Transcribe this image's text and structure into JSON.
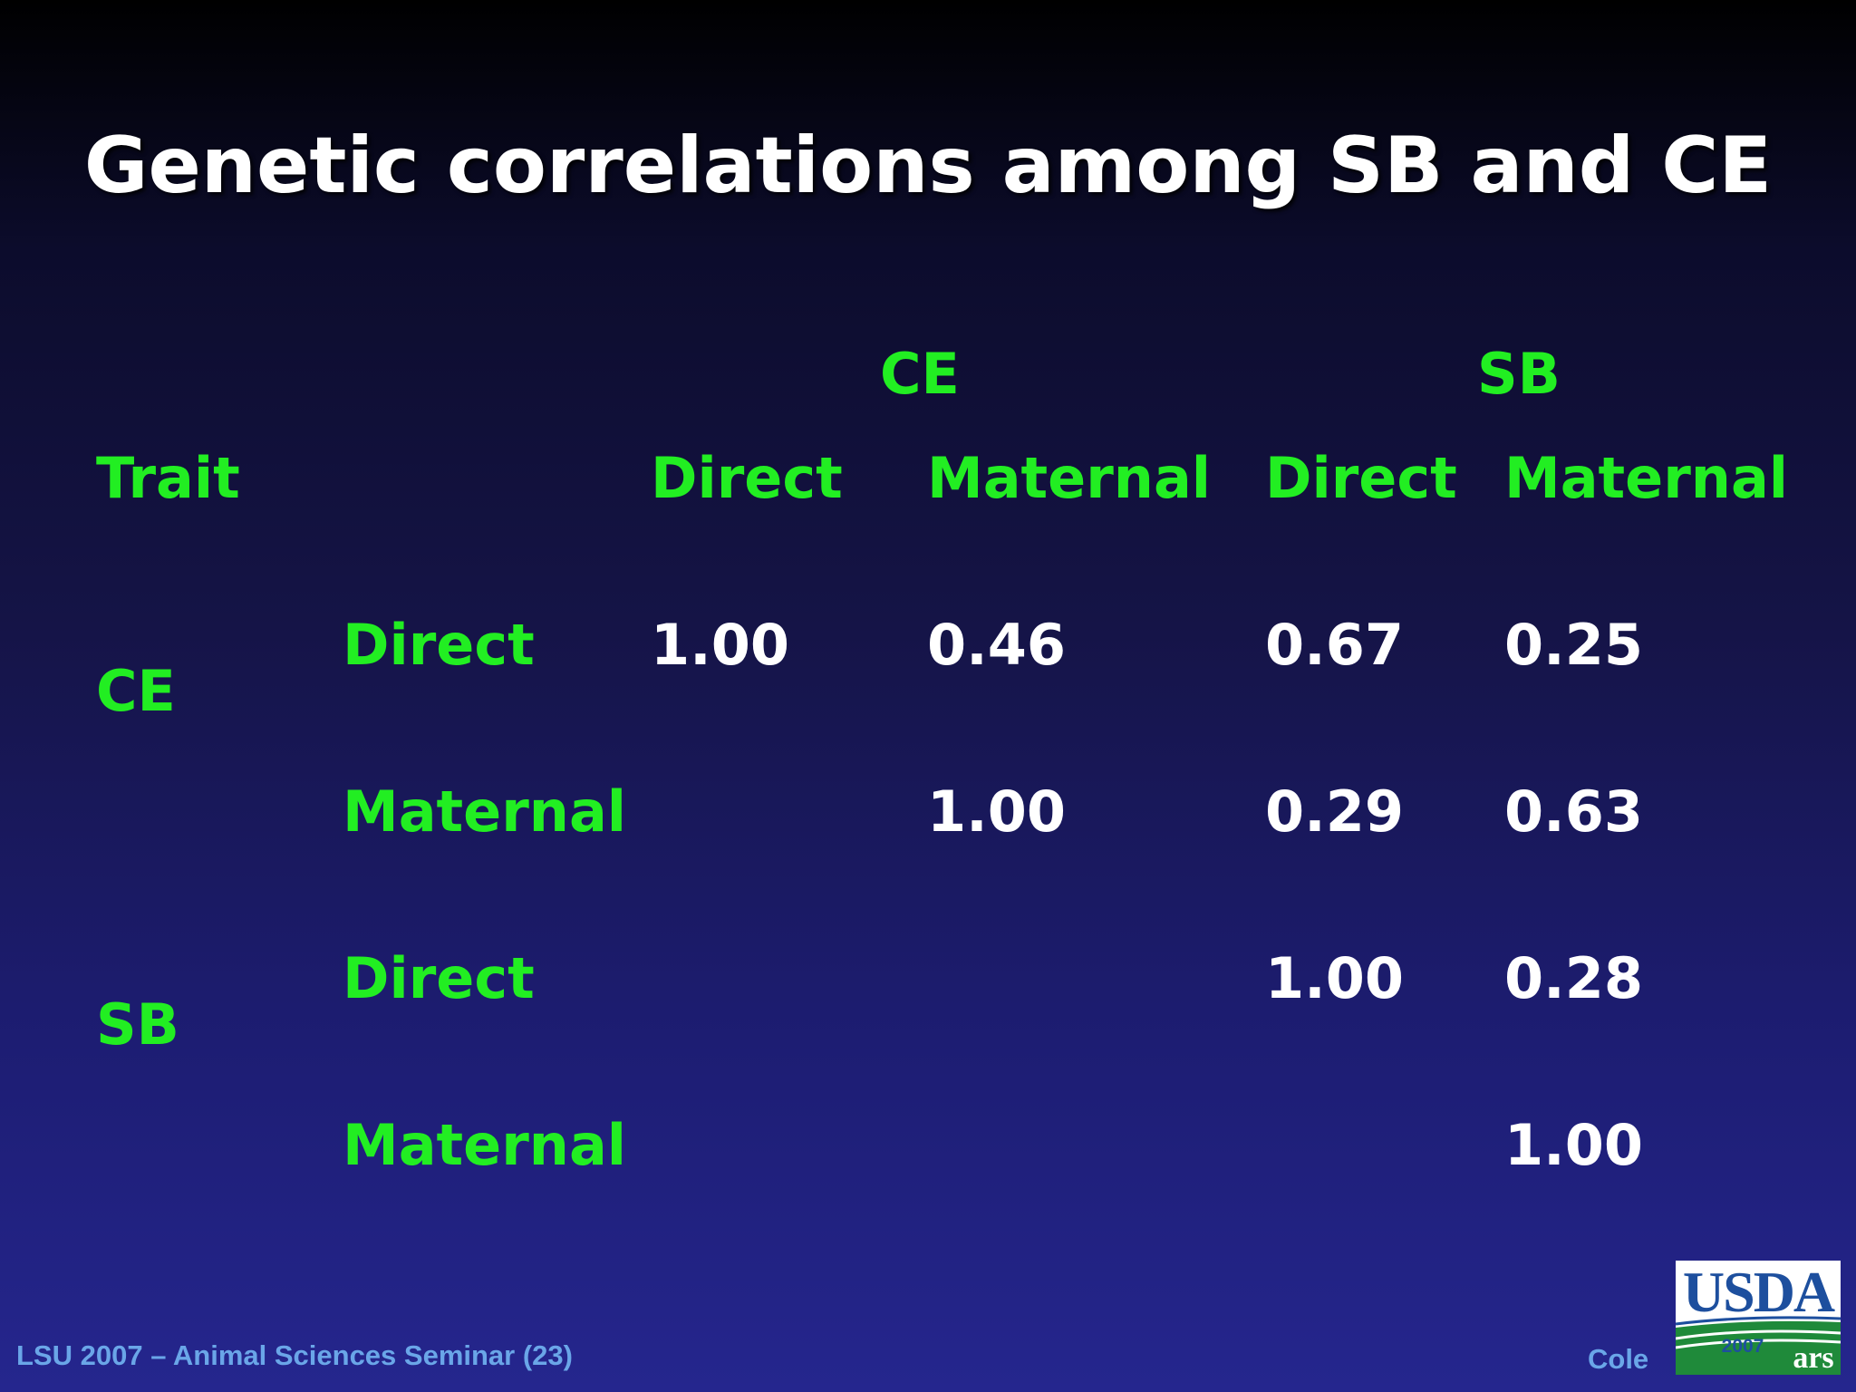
{
  "title": "Genetic correlations among SB and CE",
  "table": {
    "group_headers": [
      "CE",
      "SB"
    ],
    "column_headers": [
      "Direct",
      "Maternal",
      "Direct",
      "Maternal"
    ],
    "trait_header": "Trait",
    "trait_groups": [
      "CE",
      "SB"
    ],
    "rows": [
      {
        "effect": "Direct",
        "values": [
          "1.00",
          "0.46",
          "0.67",
          "0.25"
        ]
      },
      {
        "effect": "Maternal",
        "values": [
          "",
          "1.00",
          "0.29",
          "0.63"
        ]
      },
      {
        "effect": "Direct",
        "values": [
          "",
          "",
          "1.00",
          "0.28"
        ]
      },
      {
        "effect": "Maternal",
        "values": [
          "",
          "",
          "",
          "1.00"
        ]
      }
    ]
  },
  "footer": {
    "left": "LSU 2007 – Animal Sciences Seminar (23)",
    "author": "Cole"
  },
  "logo": {
    "text": "USDA",
    "badge_year": "2007",
    "icon": "usda-ars-logo"
  },
  "colors": {
    "header_text": "#22ee22",
    "value_text": "#ffffff",
    "footer_text": "#6aa6e8",
    "background_top": "#000000",
    "background_bottom": "#25268e"
  }
}
